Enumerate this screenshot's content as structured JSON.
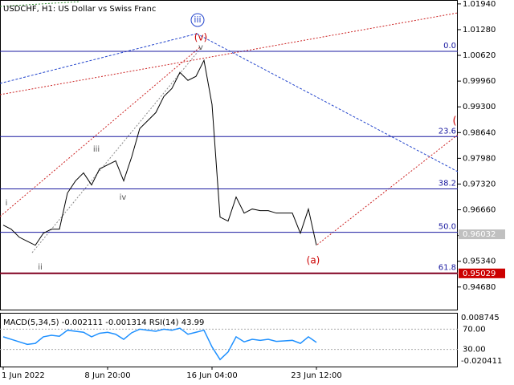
{
  "chart_data": {
    "type": "line",
    "title": "USDCHF, H1:  US Dollar vs Swiss Franc",
    "categories": [
      "1 Jun 2022",
      null,
      null,
      null,
      null,
      null,
      null,
      null,
      null,
      null,
      null,
      null,
      null,
      "8 Jun 20:00",
      null,
      null,
      null,
      null,
      null,
      null,
      null,
      null,
      null,
      null,
      null,
      null,
      "16 Jun 04:00",
      null,
      null,
      null,
      null,
      null,
      null,
      null,
      null,
      null,
      null,
      null,
      null,
      "23 Jun 12:00"
    ],
    "series": [
      {
        "name": "USDCHF",
        "color": "#000000",
        "values": [
          0.96266,
          0.96162,
          0.95956,
          0.95853,
          0.9575,
          0.96059,
          0.96162,
          0.96162,
          0.9709,
          0.974,
          0.97606,
          0.97297,
          0.97709,
          0.97812,
          0.97915,
          0.974,
          0.98019,
          0.98743,
          0.98946,
          0.99152,
          0.99565,
          0.99771,
          1.00184,
          0.99978,
          1.00081,
          1.00493,
          0.99359,
          0.96472,
          0.96369,
          0.96987,
          0.96575,
          0.9668,
          0.96637,
          0.96637,
          0.96575,
          0.96575,
          0.96575,
          0.96059,
          0.9668,
          0.9575
        ]
      },
      {
        "name": "RSI(14)",
        "color": "#1e90ff",
        "axis": "y2",
        "values": [
          55,
          50,
          45,
          40,
          42,
          55,
          58,
          56,
          68,
          66,
          64,
          55,
          62,
          64,
          60,
          50,
          63,
          70,
          68,
          66,
          70,
          68,
          72,
          60,
          64,
          68,
          35,
          10,
          25,
          55,
          45,
          50,
          48,
          50,
          46,
          47,
          48,
          42,
          55,
          43.99
        ]
      }
    ],
    "ylim": [
      0.941,
      1.0204
    ],
    "yticks": [
      {
        "value": 1.0194,
        "label": "1.01940"
      },
      {
        "value": 1.0128,
        "label": "1.01280"
      },
      {
        "value": 1.0062,
        "label": "1.00620"
      },
      {
        "value": 0.9996,
        "label": "0.99960"
      },
      {
        "value": 0.993,
        "label": "0.99300"
      },
      {
        "value": 0.9864,
        "label": "0.98640"
      },
      {
        "value": 0.9798,
        "label": "0.97980"
      },
      {
        "value": 0.9732,
        "label": "0.97320"
      },
      {
        "value": 0.9666,
        "label": "0.96660"
      },
      {
        "value": 0.96,
        "label": "0.96000"
      },
      {
        "value": 0.9534,
        "label": "0.95340"
      },
      {
        "value": 0.9468,
        "label": "0.94680"
      }
    ],
    "y2lim": [
      -3.8,
      100.8
    ],
    "y2ticks": [
      {
        "value": 70,
        "label": "70.00"
      },
      {
        "value": 30,
        "label": "30.00"
      }
    ],
    "macd_scale": [
      "0.008745",
      "-0.020411"
    ],
    "indicator_text": "MACD(5,34,5) -0.002111 -0.001314 RSI(14) 43.99",
    "price_markers": [
      {
        "value": 0.96032,
        "label": "0.96032",
        "color": "#c0c0c0"
      },
      {
        "value": 0.95029,
        "label": "0.95029",
        "color": "#cc0000"
      }
    ],
    "fib_levels": [
      {
        "label": "0.0",
        "price": 1.00723
      },
      {
        "label": "23.6",
        "price": 0.98537
      },
      {
        "label": "38.2",
        "price": 0.97197
      },
      {
        "label": "50.0",
        "price": 0.96083
      },
      {
        "label": "61.8",
        "price": 0.95031
      }
    ],
    "annotations": [
      "i",
      "ii",
      "iii",
      "iv",
      "v",
      "(v)",
      "iii",
      "(a)",
      "("
    ]
  }
}
